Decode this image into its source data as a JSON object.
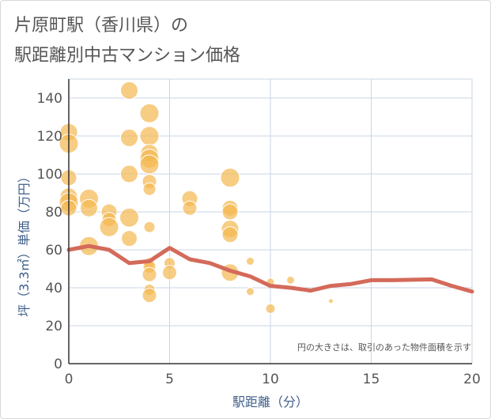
{
  "chart_data": {
    "type": "scatter",
    "title_line1": "片原町駅（香川県）の",
    "title_line2": "駅距離別中古マンション価格",
    "xlabel": "駅距離（分）",
    "ylabel": "坪（3.3㎡）単価（万円）",
    "xlim": [
      0,
      20
    ],
    "ylim": [
      0,
      150
    ],
    "xticks": [
      0,
      5,
      10,
      15,
      20
    ],
    "yticks": [
      0,
      20,
      40,
      60,
      80,
      100,
      120,
      140
    ],
    "note": "円の大きさは、取引のあった物件面積を示す",
    "bubbles": [
      {
        "x": 0,
        "y": 122,
        "s": 11
      },
      {
        "x": 0,
        "y": 116,
        "s": 12
      },
      {
        "x": 0,
        "y": 98,
        "s": 10
      },
      {
        "x": 0,
        "y": 88,
        "s": 11
      },
      {
        "x": 0,
        "y": 85,
        "s": 12
      },
      {
        "x": 0,
        "y": 82,
        "s": 10
      },
      {
        "x": 1,
        "y": 87,
        "s": 12
      },
      {
        "x": 1,
        "y": 82,
        "s": 11
      },
      {
        "x": 1,
        "y": 62,
        "s": 12
      },
      {
        "x": 2,
        "y": 80,
        "s": 10
      },
      {
        "x": 2,
        "y": 76,
        "s": 9
      },
      {
        "x": 2,
        "y": 72,
        "s": 12
      },
      {
        "x": 3,
        "y": 144,
        "s": 11
      },
      {
        "x": 3,
        "y": 119,
        "s": 11
      },
      {
        "x": 3,
        "y": 100,
        "s": 11
      },
      {
        "x": 3,
        "y": 77,
        "s": 12
      },
      {
        "x": 3,
        "y": 66,
        "s": 10
      },
      {
        "x": 4,
        "y": 132,
        "s": 12
      },
      {
        "x": 4,
        "y": 120,
        "s": 12
      },
      {
        "x": 4,
        "y": 111,
        "s": 11
      },
      {
        "x": 4,
        "y": 108,
        "s": 12
      },
      {
        "x": 4,
        "y": 105,
        "s": 12
      },
      {
        "x": 4,
        "y": 96,
        "s": 9
      },
      {
        "x": 4,
        "y": 92,
        "s": 8
      },
      {
        "x": 4,
        "y": 72,
        "s": 7
      },
      {
        "x": 4,
        "y": 53,
        "s": 7
      },
      {
        "x": 4,
        "y": 51,
        "s": 8
      },
      {
        "x": 4,
        "y": 47,
        "s": 9
      },
      {
        "x": 4,
        "y": 39,
        "s": 7
      },
      {
        "x": 4,
        "y": 36,
        "s": 9
      },
      {
        "x": 5,
        "y": 53,
        "s": 7
      },
      {
        "x": 5,
        "y": 48,
        "s": 9
      },
      {
        "x": 6,
        "y": 87,
        "s": 10
      },
      {
        "x": 6,
        "y": 82,
        "s": 9
      },
      {
        "x": 8,
        "y": 98,
        "s": 12
      },
      {
        "x": 8,
        "y": 82,
        "s": 10
      },
      {
        "x": 8,
        "y": 80,
        "s": 10
      },
      {
        "x": 8,
        "y": 71,
        "s": 11
      },
      {
        "x": 8,
        "y": 68,
        "s": 10
      },
      {
        "x": 8,
        "y": 48,
        "s": 11
      },
      {
        "x": 9,
        "y": 54,
        "s": 5
      },
      {
        "x": 9,
        "y": 38,
        "s": 5
      },
      {
        "x": 10,
        "y": 43,
        "s": 5
      },
      {
        "x": 10,
        "y": 29,
        "s": 6
      },
      {
        "x": 11,
        "y": 44,
        "s": 5
      },
      {
        "x": 13,
        "y": 33,
        "s": 3
      }
    ],
    "trend": {
      "x": [
        0,
        1,
        2,
        3,
        4,
        5,
        6,
        7,
        8,
        9,
        10,
        11,
        12,
        13,
        14,
        15,
        16,
        17,
        18,
        19,
        20
      ],
      "y": [
        60,
        62,
        60,
        53,
        54,
        61,
        55,
        53,
        49,
        46,
        41,
        40,
        38.5,
        41,
        42,
        44,
        44,
        44.2,
        44.4,
        41,
        38
      ]
    },
    "colors": {
      "bubble_fill": "#f3b850",
      "bubble_stroke": "#ffffff",
      "trend": "#d46a5a",
      "grid": "#c9d6e6",
      "axis": "#333333"
    }
  }
}
